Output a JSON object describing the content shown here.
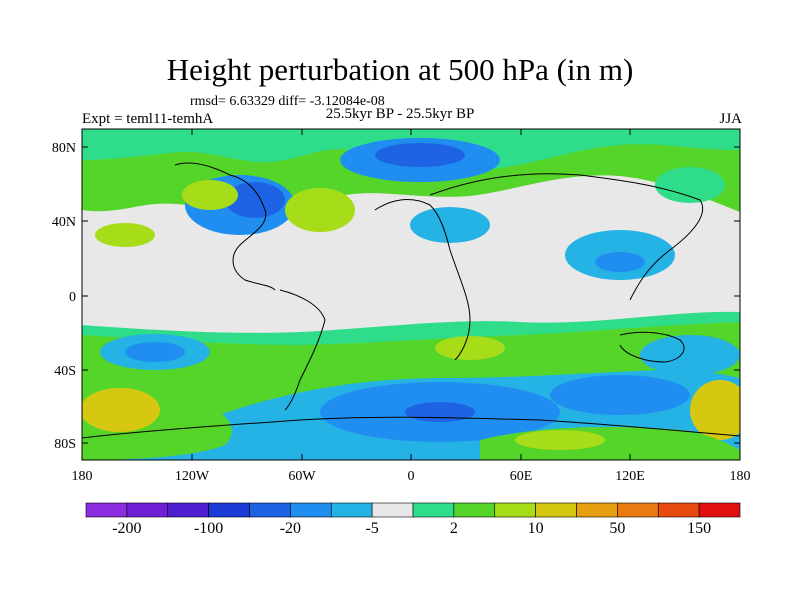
{
  "title": "Height perturbation at 500 hPa (in m)",
  "stats": "rmsd= 6.63329 diff= -3.12084e-08",
  "left_label": "Expt = teml11-temhA",
  "center_label": "25.5kyr BP - 25.5kyr BP",
  "right_label": "JJA",
  "lat_ticks": [
    "80N",
    "40N",
    "0",
    "40S",
    "80S"
  ],
  "lon_ticks": [
    "180",
    "120W",
    "60W",
    "0",
    "60E",
    "120E",
    "180"
  ],
  "colorbar": {
    "colors": [
      "#8c2de0",
      "#6f1fd6",
      "#4f20d0",
      "#1a3bd6",
      "#1e63e3",
      "#1f8ef0",
      "#25b3e6",
      "#e8e8e8",
      "#2fdc8a",
      "#55d42a",
      "#a6dc18",
      "#d6c810",
      "#e6a010",
      "#e87a10",
      "#e84a10",
      "#e01010"
    ],
    "labels": [
      "-200",
      "-100",
      "-20",
      "-5",
      "2",
      "10",
      "50",
      "150"
    ]
  },
  "colors": {
    "deep_blue": "#1e63e3",
    "blue": "#1f8ef0",
    "cyan": "#25b3e6",
    "neutral": "#e8e8e8",
    "teal": "#2fdc8a",
    "green": "#55d42a",
    "yellow_green": "#a6dc18",
    "yellow": "#d6c810",
    "orange": "#e6a010"
  }
}
